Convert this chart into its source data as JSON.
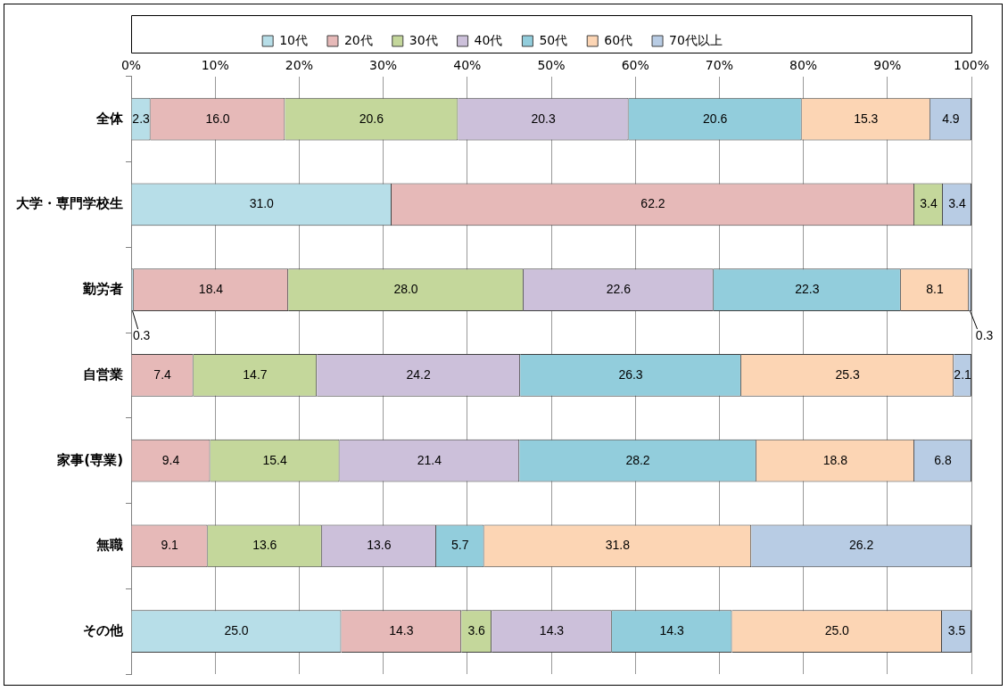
{
  "chart_data": {
    "type": "bar",
    "orientation": "horizontal",
    "stacked": true,
    "grid": "x",
    "legend": "top",
    "categories": [
      "全体",
      "大学・専門学校生",
      "勤労者",
      "自営業",
      "家事(専業)",
      "無職",
      "その他"
    ],
    "xlim": [
      0,
      100
    ],
    "xticks": [
      {
        "value": 0,
        "label": "0%"
      },
      {
        "value": 10,
        "label": "10%"
      },
      {
        "value": 20,
        "label": "20%"
      },
      {
        "value": 30,
        "label": "30%"
      },
      {
        "value": 40,
        "label": "40%"
      },
      {
        "value": 50,
        "label": "50%"
      },
      {
        "value": 60,
        "label": "60%"
      },
      {
        "value": 70,
        "label": "70%"
      },
      {
        "value": 80,
        "label": "80%"
      },
      {
        "value": 90,
        "label": "90%"
      },
      {
        "value": 100,
        "label": "100%"
      }
    ],
    "series": [
      {
        "name": "10代",
        "color": "#b7dee8",
        "values": [
          2.3,
          31.0,
          0.3,
          null,
          null,
          null,
          25.0
        ],
        "value_labels": [
          "2.3",
          "31.0",
          "0.3",
          null,
          null,
          null,
          "25.0"
        ]
      },
      {
        "name": "20代",
        "color": "#e6b9b8",
        "values": [
          16.0,
          62.2,
          18.4,
          7.4,
          9.4,
          9.1,
          14.3
        ],
        "value_labels": [
          "16.0",
          "62.2",
          "18.4",
          "7.4",
          "9.4",
          "9.1",
          "14.3"
        ]
      },
      {
        "name": "30代",
        "color": "#c4d79b",
        "values": [
          20.6,
          3.4,
          28.0,
          14.7,
          15.4,
          13.6,
          3.6
        ],
        "value_labels": [
          "20.6",
          "3.4",
          "28.0",
          "14.7",
          "15.4",
          "13.6",
          "3.6"
        ]
      },
      {
        "name": "40代",
        "color": "#ccc0da",
        "values": [
          20.3,
          null,
          22.6,
          24.2,
          21.4,
          13.6,
          14.3
        ],
        "value_labels": [
          "20.3",
          null,
          "22.6",
          "24.2",
          "21.4",
          "13.6",
          "14.3"
        ]
      },
      {
        "name": "50代",
        "color": "#92cddc",
        "values": [
          20.6,
          null,
          22.3,
          26.3,
          28.2,
          5.7,
          14.3
        ],
        "value_labels": [
          "20.6",
          null,
          "22.3",
          "26.3",
          "28.2",
          "5.7",
          "14.3"
        ]
      },
      {
        "name": "60代",
        "color": "#fcd5b4",
        "values": [
          15.3,
          null,
          8.1,
          25.3,
          18.8,
          31.8,
          25.0
        ],
        "value_labels": [
          "15.3",
          null,
          "8.1",
          "25.3",
          "18.8",
          "31.8",
          "25.0"
        ]
      },
      {
        "name": "70代以上",
        "color": "#b8cce4",
        "values": [
          4.9,
          3.4,
          0.3,
          2.1,
          6.8,
          26.2,
          3.5
        ],
        "value_labels": [
          "4.9",
          "3.4",
          "0.3",
          "2.1",
          "6.8",
          "26.2",
          "3.5"
        ]
      }
    ]
  }
}
